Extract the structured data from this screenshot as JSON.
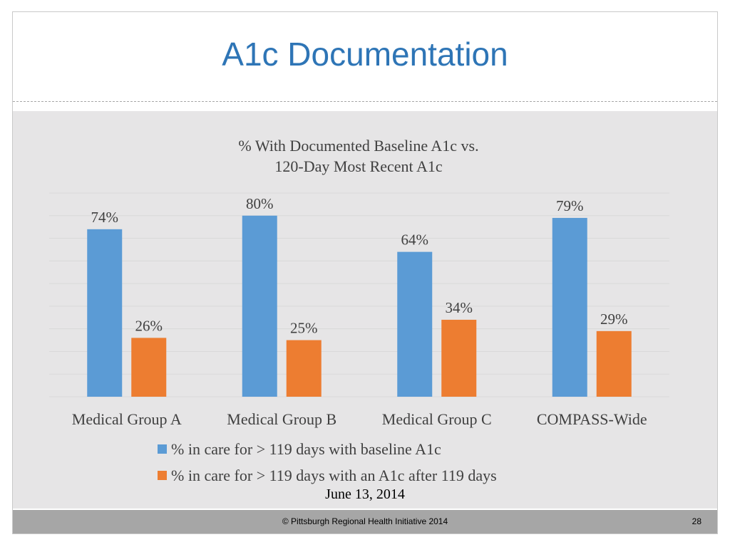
{
  "slide": {
    "title": "A1c Documentation",
    "date": "June 13, 2014",
    "footer_text": "© Pittsburgh Regional Health Initiative  2014",
    "page_number": "28"
  },
  "colors": {
    "title": "#2e75b6",
    "panel": "#e6e5e6",
    "footer": "#a6a6a6",
    "series_1": "#5b9bd5",
    "series_2": "#ed7d31",
    "gridline": "#d9d9d9"
  },
  "chart_data": {
    "type": "bar",
    "title": "% With Documented Baseline A1c vs. 120-Day Most Recent A1c",
    "title_lines": [
      "% With Documented Baseline A1c vs.",
      "120-Day Most Recent A1c"
    ],
    "categories": [
      "Medical Group A",
      "Medical Group B",
      "Medical Group C",
      "COMPASS-Wide"
    ],
    "series": [
      {
        "name": "% in care for > 119 days with baseline A1c",
        "values": [
          74,
          80,
          64,
          79
        ],
        "labels": [
          "74%",
          "80%",
          "64%",
          "79%"
        ]
      },
      {
        "name": "% in care for > 119 days with an A1c after 119 days",
        "values": [
          26,
          25,
          34,
          29
        ],
        "labels": [
          "26%",
          "25%",
          "34%",
          "29%"
        ]
      }
    ],
    "ylim": [
      0,
      90
    ],
    "grid_step": 10,
    "grid": true,
    "legend_position": "bottom"
  }
}
